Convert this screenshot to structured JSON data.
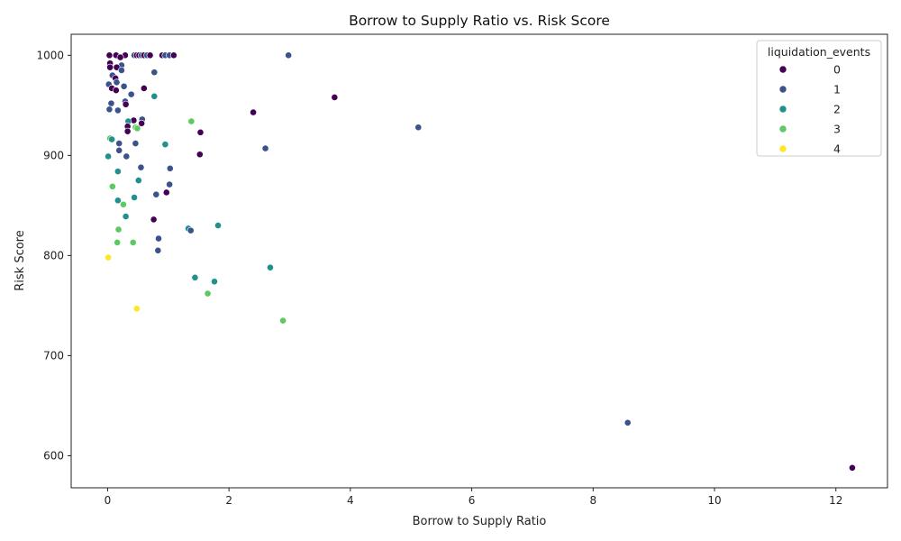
{
  "chart_data": {
    "type": "scatter",
    "title": "Borrow to Supply Ratio vs. Risk Score",
    "xlabel": "Borrow to Supply Ratio",
    "ylabel": "Risk Score",
    "xlim": [
      -0.6,
      12.85
    ],
    "ylim": [
      568,
      1021
    ],
    "xticks": [
      0,
      2,
      4,
      6,
      8,
      10,
      12
    ],
    "yticks": [
      600,
      700,
      800,
      900,
      1000
    ],
    "grid": false,
    "legend": {
      "title": "liquidation_events",
      "position": "top-right",
      "entries": [
        {
          "label": "0",
          "color": "#440154"
        },
        {
          "label": "1",
          "color": "#3b528b"
        },
        {
          "label": "2",
          "color": "#21918c"
        },
        {
          "label": "3",
          "color": "#5ec962"
        },
        {
          "label": "4",
          "color": "#fde725"
        }
      ]
    },
    "points": [
      {
        "x": 0.03,
        "y": 1000,
        "group": 0
      },
      {
        "x": 0.14,
        "y": 1000,
        "group": 0
      },
      {
        "x": 0.29,
        "y": 1000,
        "group": 0
      },
      {
        "x": 0.44,
        "y": 1000,
        "group": 1
      },
      {
        "x": 0.48,
        "y": 1000,
        "group": 0
      },
      {
        "x": 0.52,
        "y": 1000,
        "group": 0
      },
      {
        "x": 0.56,
        "y": 1000,
        "group": 1
      },
      {
        "x": 0.6,
        "y": 1000,
        "group": 0
      },
      {
        "x": 0.65,
        "y": 1000,
        "group": 1
      },
      {
        "x": 0.7,
        "y": 1000,
        "group": 0
      },
      {
        "x": 0.9,
        "y": 1000,
        "group": 0
      },
      {
        "x": 0.95,
        "y": 1000,
        "group": 1
      },
      {
        "x": 1.02,
        "y": 1000,
        "group": 1
      },
      {
        "x": 1.09,
        "y": 1000,
        "group": 0
      },
      {
        "x": 2.98,
        "y": 1000,
        "group": 1
      },
      {
        "x": 0.21,
        "y": 998,
        "group": 0
      },
      {
        "x": 0.04,
        "y": 992,
        "group": 0
      },
      {
        "x": 0.23,
        "y": 990,
        "group": 1
      },
      {
        "x": 0.04,
        "y": 988,
        "group": 0
      },
      {
        "x": 0.15,
        "y": 988,
        "group": 0
      },
      {
        "x": 0.23,
        "y": 985,
        "group": 1
      },
      {
        "x": 0.77,
        "y": 983,
        "group": 1
      },
      {
        "x": 0.08,
        "y": 980,
        "group": 1
      },
      {
        "x": 0.13,
        "y": 977,
        "group": 0
      },
      {
        "x": 0.15,
        "y": 973,
        "group": 1
      },
      {
        "x": 0.02,
        "y": 971,
        "group": 1
      },
      {
        "x": 0.27,
        "y": 969,
        "group": 1
      },
      {
        "x": 0.07,
        "y": 967,
        "group": 0
      },
      {
        "x": 0.14,
        "y": 965,
        "group": 0
      },
      {
        "x": 0.6,
        "y": 967,
        "group": 0
      },
      {
        "x": 0.39,
        "y": 961,
        "group": 1
      },
      {
        "x": 0.77,
        "y": 959,
        "group": 2
      },
      {
        "x": 3.74,
        "y": 958,
        "group": 0
      },
      {
        "x": 0.29,
        "y": 954,
        "group": 1
      },
      {
        "x": 0.06,
        "y": 952,
        "group": 1
      },
      {
        "x": 0.3,
        "y": 951,
        "group": 0
      },
      {
        "x": 0.03,
        "y": 946,
        "group": 1
      },
      {
        "x": 0.17,
        "y": 945,
        "group": 1
      },
      {
        "x": 2.4,
        "y": 943,
        "group": 0
      },
      {
        "x": 0.43,
        "y": 935,
        "group": 0
      },
      {
        "x": 0.57,
        "y": 936,
        "group": 1
      },
      {
        "x": 0.34,
        "y": 934,
        "group": 2
      },
      {
        "x": 0.56,
        "y": 932,
        "group": 0
      },
      {
        "x": 1.38,
        "y": 934,
        "group": 3
      },
      {
        "x": 0.33,
        "y": 929,
        "group": 0
      },
      {
        "x": 0.46,
        "y": 928,
        "group": 3
      },
      {
        "x": 0.49,
        "y": 927,
        "group": 3
      },
      {
        "x": 5.12,
        "y": 928,
        "group": 1
      },
      {
        "x": 0.33,
        "y": 924,
        "group": 0
      },
      {
        "x": 1.53,
        "y": 923,
        "group": 0
      },
      {
        "x": 0.04,
        "y": 917,
        "group": 3
      },
      {
        "x": 0.07,
        "y": 916,
        "group": 2
      },
      {
        "x": 0.19,
        "y": 912,
        "group": 1
      },
      {
        "x": 0.46,
        "y": 912,
        "group": 1
      },
      {
        "x": 0.95,
        "y": 911,
        "group": 2
      },
      {
        "x": 2.6,
        "y": 907,
        "group": 1
      },
      {
        "x": 0.19,
        "y": 905,
        "group": 1
      },
      {
        "x": 1.52,
        "y": 901,
        "group": 0
      },
      {
        "x": 0.01,
        "y": 899,
        "group": 2
      },
      {
        "x": 0.31,
        "y": 899,
        "group": 1
      },
      {
        "x": 0.55,
        "y": 888,
        "group": 1
      },
      {
        "x": 1.03,
        "y": 887,
        "group": 1
      },
      {
        "x": 0.17,
        "y": 884,
        "group": 2
      },
      {
        "x": 0.51,
        "y": 875,
        "group": 2
      },
      {
        "x": 1.02,
        "y": 871,
        "group": 1
      },
      {
        "x": 0.08,
        "y": 869,
        "group": 3
      },
      {
        "x": 0.97,
        "y": 863,
        "group": 0
      },
      {
        "x": 0.8,
        "y": 861,
        "group": 1
      },
      {
        "x": 0.44,
        "y": 858,
        "group": 2
      },
      {
        "x": 0.17,
        "y": 855,
        "group": 2
      },
      {
        "x": 0.26,
        "y": 851,
        "group": 3
      },
      {
        "x": 0.3,
        "y": 839,
        "group": 2
      },
      {
        "x": 0.76,
        "y": 836,
        "group": 0
      },
      {
        "x": 1.82,
        "y": 830,
        "group": 2
      },
      {
        "x": 1.33,
        "y": 827,
        "group": 2
      },
      {
        "x": 0.18,
        "y": 826,
        "group": 3
      },
      {
        "x": 1.37,
        "y": 825,
        "group": 1
      },
      {
        "x": 0.84,
        "y": 817,
        "group": 1
      },
      {
        "x": 0.16,
        "y": 813,
        "group": 3
      },
      {
        "x": 0.42,
        "y": 813,
        "group": 3
      },
      {
        "x": 0.83,
        "y": 805,
        "group": 1
      },
      {
        "x": 0.01,
        "y": 798,
        "group": 4
      },
      {
        "x": 2.68,
        "y": 788,
        "group": 2
      },
      {
        "x": 1.44,
        "y": 778,
        "group": 2
      },
      {
        "x": 1.76,
        "y": 774,
        "group": 2
      },
      {
        "x": 1.65,
        "y": 762,
        "group": 3
      },
      {
        "x": 0.48,
        "y": 747,
        "group": 4
      },
      {
        "x": 2.89,
        "y": 735,
        "group": 3
      },
      {
        "x": 8.57,
        "y": 633,
        "group": 1
      },
      {
        "x": 12.27,
        "y": 588,
        "group": 0
      }
    ]
  }
}
